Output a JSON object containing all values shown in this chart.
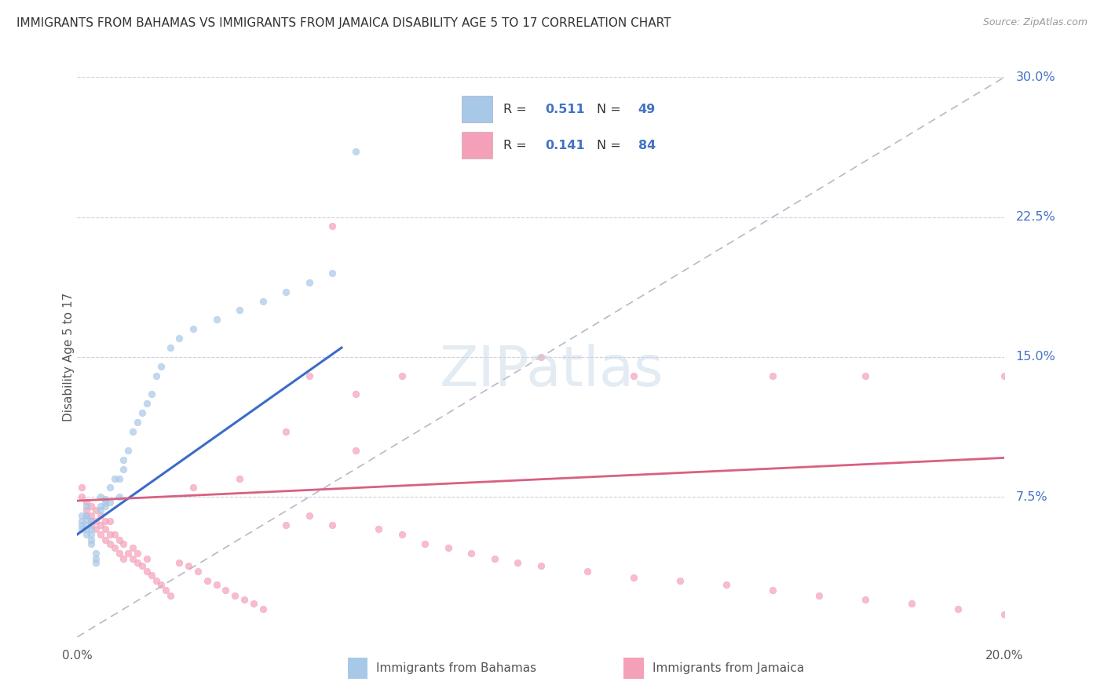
{
  "title": "IMMIGRANTS FROM BAHAMAS VS IMMIGRANTS FROM JAMAICA DISABILITY AGE 5 TO 17 CORRELATION CHART",
  "source": "Source: ZipAtlas.com",
  "ylabel": "Disability Age 5 to 17",
  "xmin": 0.0,
  "xmax": 0.2,
  "ymin": 0.0,
  "ymax": 0.3,
  "yticks": [
    0.0,
    0.075,
    0.15,
    0.225,
    0.3
  ],
  "ytick_labels": [
    "",
    "7.5%",
    "15.0%",
    "22.5%",
    "30.0%"
  ],
  "xticks": [
    0.0,
    0.05,
    0.1,
    0.15,
    0.2
  ],
  "xtick_labels": [
    "0.0%",
    "",
    "",
    "",
    "20.0%"
  ],
  "bahamas_R": 0.511,
  "bahamas_N": 49,
  "jamaica_R": 0.141,
  "jamaica_N": 84,
  "bahamas_color": "#a8c8e8",
  "jamaica_color": "#f4a0b8",
  "bahamas_line_color": "#3b6cc7",
  "jamaica_line_color": "#d96080",
  "ref_line_color": "#b8b8c8",
  "scatter_alpha": 0.7,
  "scatter_size": 38,
  "bahamas_x": [
    0.001,
    0.001,
    0.001,
    0.001,
    0.002,
    0.002,
    0.002,
    0.002,
    0.002,
    0.002,
    0.003,
    0.003,
    0.003,
    0.003,
    0.003,
    0.004,
    0.004,
    0.004,
    0.005,
    0.005,
    0.005,
    0.006,
    0.006,
    0.006,
    0.007,
    0.007,
    0.008,
    0.009,
    0.009,
    0.01,
    0.01,
    0.011,
    0.012,
    0.013,
    0.014,
    0.015,
    0.016,
    0.017,
    0.018,
    0.02,
    0.022,
    0.025,
    0.03,
    0.035,
    0.04,
    0.045,
    0.05,
    0.055,
    0.06
  ],
  "bahamas_y": [
    0.058,
    0.06,
    0.062,
    0.065,
    0.055,
    0.058,
    0.06,
    0.063,
    0.065,
    0.07,
    0.05,
    0.052,
    0.055,
    0.058,
    0.062,
    0.04,
    0.042,
    0.045,
    0.068,
    0.07,
    0.075,
    0.07,
    0.072,
    0.074,
    0.072,
    0.08,
    0.085,
    0.075,
    0.085,
    0.09,
    0.095,
    0.1,
    0.11,
    0.115,
    0.12,
    0.125,
    0.13,
    0.14,
    0.145,
    0.155,
    0.16,
    0.165,
    0.17,
    0.175,
    0.18,
    0.185,
    0.19,
    0.195,
    0.26
  ],
  "jamaica_x": [
    0.001,
    0.001,
    0.002,
    0.002,
    0.002,
    0.003,
    0.003,
    0.003,
    0.003,
    0.004,
    0.004,
    0.004,
    0.005,
    0.005,
    0.005,
    0.006,
    0.006,
    0.006,
    0.007,
    0.007,
    0.007,
    0.008,
    0.008,
    0.009,
    0.009,
    0.01,
    0.01,
    0.011,
    0.012,
    0.012,
    0.013,
    0.013,
    0.014,
    0.015,
    0.015,
    0.016,
    0.017,
    0.018,
    0.019,
    0.02,
    0.022,
    0.024,
    0.026,
    0.028,
    0.03,
    0.032,
    0.034,
    0.036,
    0.038,
    0.04,
    0.045,
    0.05,
    0.055,
    0.06,
    0.065,
    0.07,
    0.075,
    0.08,
    0.085,
    0.09,
    0.095,
    0.1,
    0.11,
    0.12,
    0.13,
    0.14,
    0.15,
    0.16,
    0.17,
    0.18,
    0.19,
    0.2,
    0.05,
    0.06,
    0.07,
    0.1,
    0.12,
    0.15,
    0.17,
    0.2,
    0.025,
    0.035,
    0.045,
    0.055
  ],
  "jamaica_y": [
    0.075,
    0.08,
    0.065,
    0.068,
    0.072,
    0.06,
    0.062,
    0.065,
    0.07,
    0.058,
    0.062,
    0.068,
    0.055,
    0.06,
    0.065,
    0.052,
    0.058,
    0.062,
    0.05,
    0.055,
    0.062,
    0.048,
    0.055,
    0.045,
    0.052,
    0.042,
    0.05,
    0.045,
    0.042,
    0.048,
    0.04,
    0.045,
    0.038,
    0.035,
    0.042,
    0.033,
    0.03,
    0.028,
    0.025,
    0.022,
    0.04,
    0.038,
    0.035,
    0.03,
    0.028,
    0.025,
    0.022,
    0.02,
    0.018,
    0.015,
    0.06,
    0.065,
    0.06,
    0.1,
    0.058,
    0.055,
    0.05,
    0.048,
    0.045,
    0.042,
    0.04,
    0.038,
    0.035,
    0.032,
    0.03,
    0.028,
    0.025,
    0.022,
    0.02,
    0.018,
    0.015,
    0.012,
    0.14,
    0.13,
    0.14,
    0.15,
    0.14,
    0.14,
    0.14,
    0.14,
    0.08,
    0.085,
    0.11,
    0.22
  ],
  "bah_line_x": [
    0.0,
    0.057
  ],
  "bah_line_y": [
    0.055,
    0.155
  ],
  "jam_line_x": [
    0.0,
    0.2
  ],
  "jam_line_y": [
    0.073,
    0.096
  ]
}
